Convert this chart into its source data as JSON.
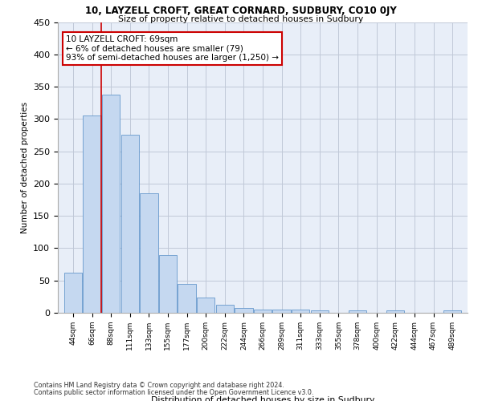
{
  "title1": "10, LAYZELL CROFT, GREAT CORNARD, SUDBURY, CO10 0JY",
  "title2": "Size of property relative to detached houses in Sudbury",
  "xlabel": "Distribution of detached houses by size in Sudbury",
  "ylabel": "Number of detached properties",
  "bar_values": [
    62,
    305,
    338,
    275,
    185,
    90,
    45,
    23,
    13,
    8,
    5,
    5,
    5,
    4,
    0,
    4,
    0,
    4,
    0,
    0,
    4
  ],
  "bar_labels": [
    "44sqm",
    "66sqm",
    "88sqm",
    "111sqm",
    "133sqm",
    "155sqm",
    "177sqm",
    "200sqm",
    "222sqm",
    "244sqm",
    "266sqm",
    "289sqm",
    "311sqm",
    "333sqm",
    "355sqm",
    "378sqm",
    "400sqm",
    "422sqm",
    "444sqm",
    "467sqm",
    "489sqm"
  ],
  "bar_color": "#c5d8f0",
  "bar_edge_color": "#6699cc",
  "vline_x": 1.5,
  "vline_color": "#cc0000",
  "annotation_text": "10 LAYZELL CROFT: 69sqm\n← 6% of detached houses are smaller (79)\n93% of semi-detached houses are larger (1,250) →",
  "annotation_box_color": "#ffffff",
  "annotation_box_edge": "#cc0000",
  "ylim": [
    0,
    450
  ],
  "yticks": [
    0,
    50,
    100,
    150,
    200,
    250,
    300,
    350,
    400,
    450
  ],
  "footer1": "Contains HM Land Registry data © Crown copyright and database right 2024.",
  "footer2": "Contains public sector information licensed under the Open Government Licence v3.0.",
  "bg_color": "#e8eef8",
  "grid_color": "#c0c8d8"
}
